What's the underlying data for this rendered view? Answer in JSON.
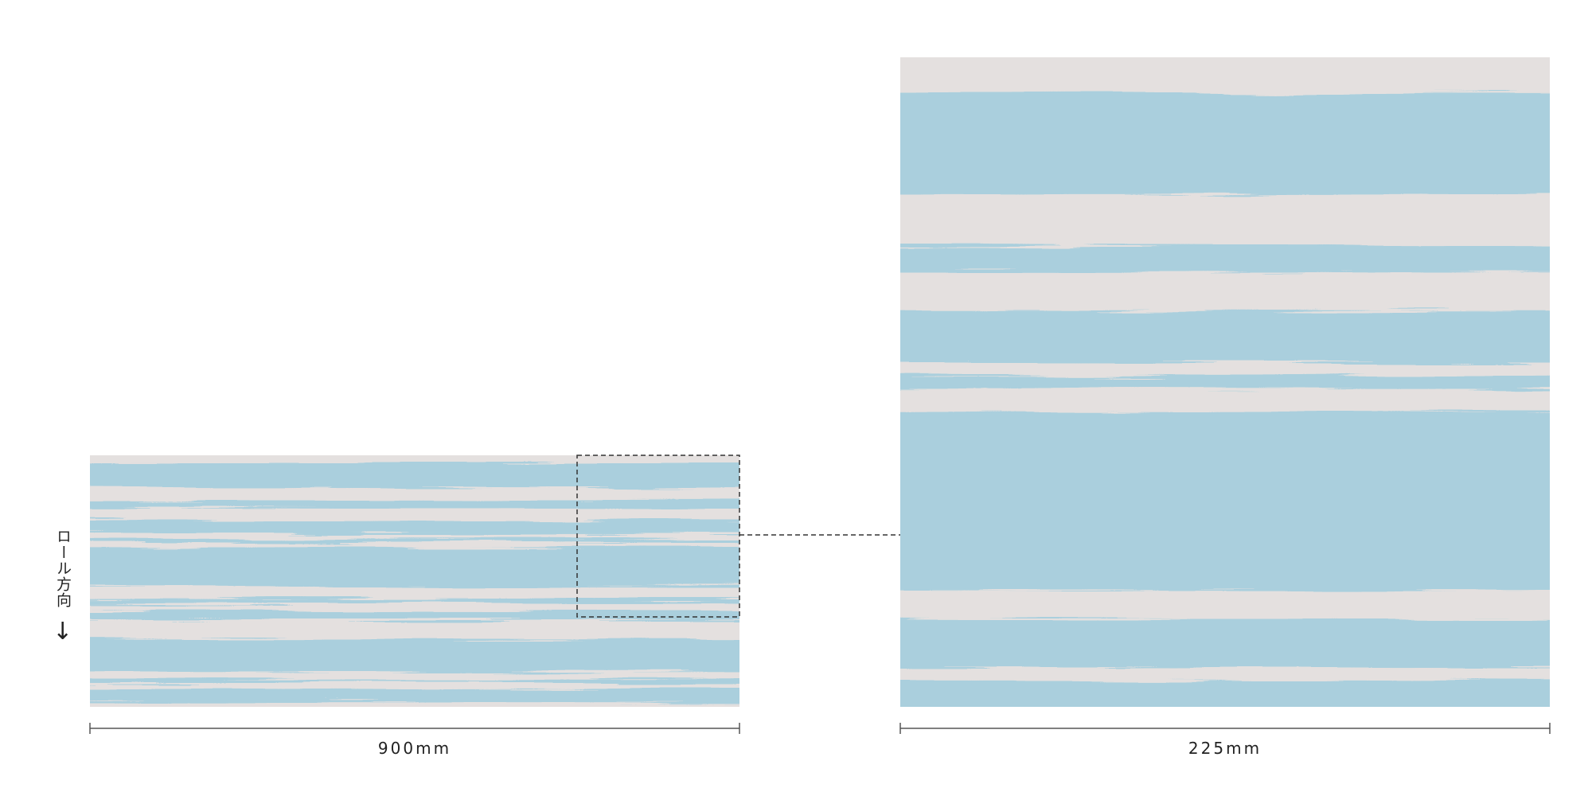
{
  "roll_direction": {
    "label": "ロール方向",
    "arrow": "↓"
  },
  "full_width": {
    "label": "900mm"
  },
  "detail_width": {
    "label": "225mm"
  }
}
